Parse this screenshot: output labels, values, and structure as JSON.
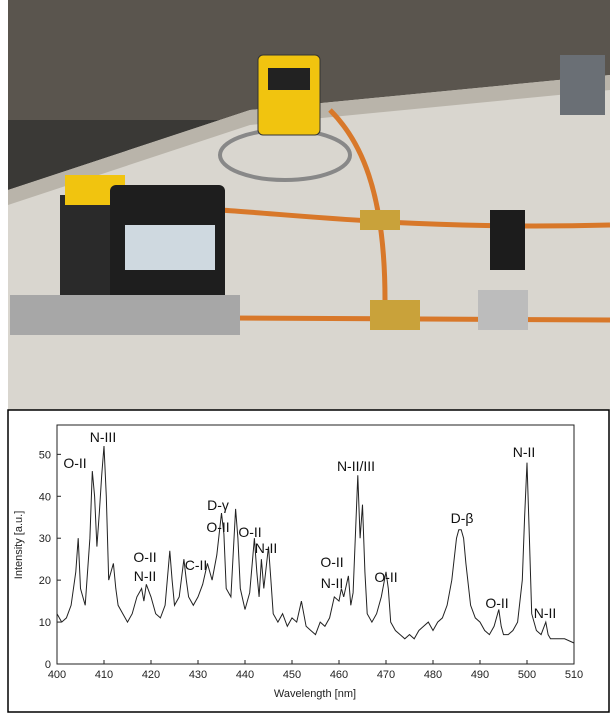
{
  "chart_data": {
    "type": "line",
    "xlabel": "Wavelength [nm]",
    "ylabel": "Intensity [a.u.]",
    "x": [
      400,
      401,
      402,
      403,
      404,
      404.5,
      405,
      406,
      407,
      407.5,
      408,
      408.5,
      409,
      409.5,
      410,
      410.5,
      411,
      412,
      412.5,
      413,
      414,
      415,
      416,
      417,
      418,
      418.5,
      419,
      420,
      421,
      422,
      423,
      424,
      424.5,
      425,
      426,
      427,
      427.5,
      428,
      429,
      430,
      431,
      432,
      433,
      434,
      435,
      435.5,
      436,
      437,
      438,
      438.5,
      439,
      440,
      441,
      442,
      442.5,
      443,
      443.5,
      444,
      445,
      445.5,
      446,
      447,
      448,
      449,
      450,
      451,
      452,
      453,
      454,
      455,
      456,
      457,
      458,
      459,
      460,
      460.5,
      461,
      462,
      462.5,
      463,
      464,
      464.5,
      465,
      465.5,
      466,
      467,
      468,
      469,
      470,
      470.5,
      471,
      472,
      473,
      474,
      475,
      476,
      477,
      478,
      479,
      480,
      481,
      482,
      483,
      484,
      485,
      485.5,
      486,
      486.5,
      487,
      488,
      489,
      490,
      491,
      492,
      493,
      494,
      494.5,
      495,
      496,
      497,
      498,
      499,
      499.5,
      500,
      500.5,
      501,
      502,
      503,
      504,
      504.5,
      505,
      506,
      508,
      510
    ],
    "values": [
      12,
      10,
      11,
      14,
      22,
      30,
      18,
      14,
      30,
      46,
      40,
      28,
      36,
      45,
      52,
      40,
      20,
      24,
      18,
      14,
      12,
      10,
      12,
      16,
      18,
      15,
      19,
      16,
      12,
      11,
      14,
      27,
      20,
      14,
      16,
      25,
      20,
      16,
      14,
      16,
      19,
      24,
      20,
      26,
      36,
      31,
      18,
      16,
      37,
      30,
      18,
      13,
      17,
      30,
      22,
      16,
      25,
      18,
      28,
      20,
      12,
      10,
      12,
      9,
      11,
      10,
      15,
      9,
      8,
      7,
      10,
      9,
      11,
      16,
      15,
      18,
      16,
      21,
      14,
      17,
      45,
      30,
      38,
      22,
      12,
      10,
      12,
      16,
      22,
      18,
      10,
      8,
      7,
      6,
      7,
      6,
      8,
      9,
      10,
      8,
      10,
      11,
      14,
      20,
      30,
      32,
      32,
      30,
      24,
      14,
      11,
      10,
      8,
      7,
      9,
      13,
      9,
      7,
      7,
      8,
      10,
      20,
      35,
      48,
      30,
      12,
      8,
      7,
      10,
      7,
      6,
      6,
      6,
      5
    ],
    "color": "#222222",
    "xlim": [
      400,
      510
    ],
    "xticks": [
      400,
      410,
      420,
      430,
      440,
      450,
      460,
      470,
      480,
      490,
      500,
      510
    ],
    "ylim": [
      0,
      57
    ],
    "yticks": [
      0,
      10,
      20,
      30,
      40,
      50
    ],
    "annotations": [
      "O-II",
      "N-III",
      "O-II",
      "N-II",
      "C-II",
      "D-γ",
      "O-II",
      "O-II",
      "N-II",
      "O-II",
      "N-II",
      "N-II/III",
      "O-II",
      "D-β",
      "N-II",
      "O-II",
      "N-II"
    ]
  }
}
